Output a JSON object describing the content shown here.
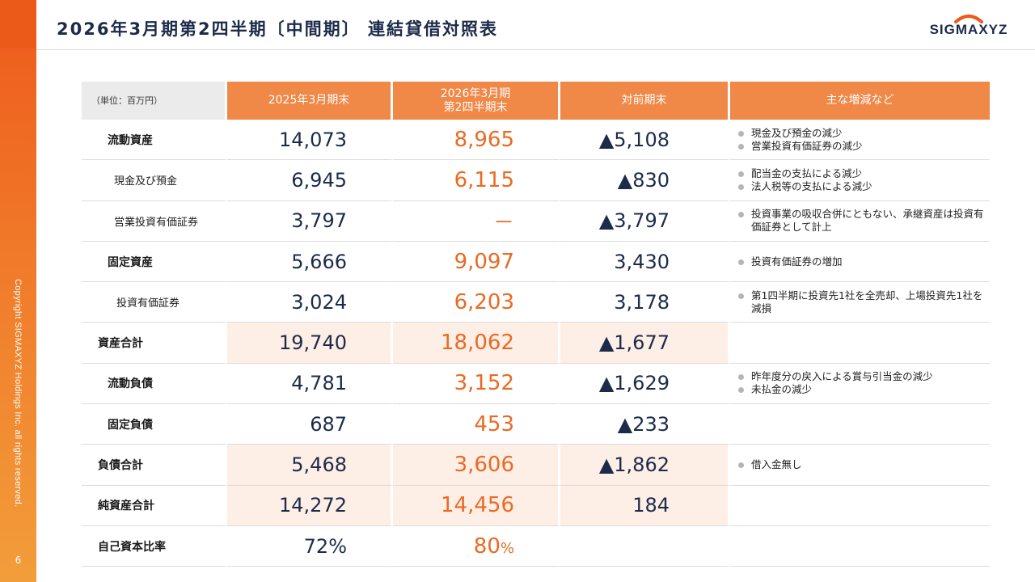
{
  "title": "2026年3月期第2四半期〔中間期〕 連結貸借対照表",
  "logo": "SIGMAXYZ",
  "copyright": "Copyright SIGMAXYZ Holdings Inc. all rights reserved.",
  "page_number": "6",
  "table": {
    "headers": {
      "unit": "（単位：百万円）",
      "prev": "2025年3月期末",
      "curr_line1": "2026年3月期",
      "curr_line2": "第2四半期末",
      "diff": "対前期末",
      "notes": "主な増減など"
    },
    "rows": [
      {
        "label": "流動資産",
        "prev": "14,073",
        "curr": "8,965",
        "diff": "▲5,108",
        "notes": [
          "現金及び預金の減少",
          "営業投資有価証券の減少"
        ]
      },
      {
        "label": "現金及び預金",
        "prev": "6,945",
        "curr": "6,115",
        "diff": "▲830",
        "notes": [
          "配当金の支払による減少",
          "法人税等の支払による減少"
        ]
      },
      {
        "label": "営業投資有価証券",
        "prev": "3,797",
        "curr": "－",
        "diff": "▲3,797",
        "notes": [
          "投資事業の吸収合併にともない、承継資産は投資有価証券として計上"
        ]
      },
      {
        "label": "固定資産",
        "prev": "5,666",
        "curr": "9,097",
        "diff": "3,430",
        "notes": [
          "投資有価証券の増加"
        ]
      },
      {
        "label": "投資有価証券",
        "prev": "3,024",
        "curr": "6,203",
        "diff": "3,178",
        "notes": [
          "第1四半期に投資先1社を全売却、上場投資先1社を減損"
        ]
      },
      {
        "label": "資産合計",
        "prev": "19,740",
        "curr": "18,062",
        "diff": "▲1,677",
        "notes": []
      },
      {
        "label": "流動負債",
        "prev": "4,781",
        "curr": "3,152",
        "diff": "▲1,629",
        "notes": [
          "昨年度分の戻入による賞与引当金の減少",
          "未払金の減少"
        ]
      },
      {
        "label": "固定負債",
        "prev": "687",
        "curr": "453",
        "diff": "▲233",
        "notes": []
      },
      {
        "label": "負債合計",
        "prev": "5,468",
        "curr": "3,606",
        "diff": "▲1,862",
        "notes": [
          "借入金無し"
        ]
      },
      {
        "label": "純資産合計",
        "prev": "14,272",
        "curr": "14,456",
        "diff": "184",
        "notes": []
      },
      {
        "label": "自己資本比率",
        "prev": "72%",
        "curr": "80",
        "curr_unit": "%",
        "diff": "",
        "notes": []
      }
    ]
  }
}
